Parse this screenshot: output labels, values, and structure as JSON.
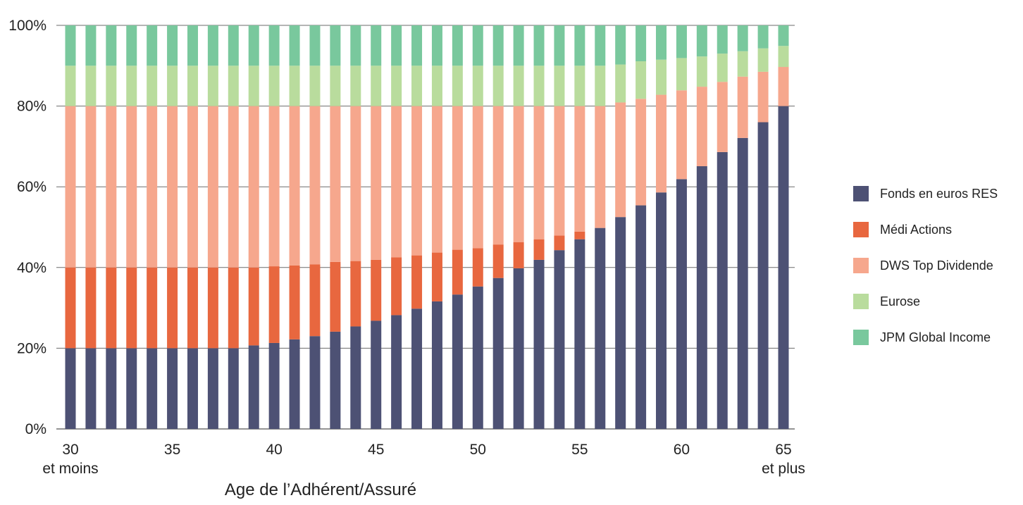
{
  "chart_data": {
    "type": "bar",
    "stacked": true,
    "title": "",
    "xlabel": "Age de l’Adhérent/Assuré",
    "ylabel": "",
    "ylim": [
      0,
      100
    ],
    "y_ticks": [
      "0%",
      "20%",
      "40%",
      "60%",
      "80%",
      "100%"
    ],
    "x_ticks": [
      {
        "age": 30,
        "label": "30",
        "sublabel": "et moins"
      },
      {
        "age": 35,
        "label": "35",
        "sublabel": ""
      },
      {
        "age": 40,
        "label": "40",
        "sublabel": ""
      },
      {
        "age": 45,
        "label": "45",
        "sublabel": ""
      },
      {
        "age": 50,
        "label": "50",
        "sublabel": ""
      },
      {
        "age": 55,
        "label": "55",
        "sublabel": ""
      },
      {
        "age": 60,
        "label": "60",
        "sublabel": ""
      },
      {
        "age": 65,
        "label": "65",
        "sublabel": "et plus"
      }
    ],
    "grid": true,
    "legend_position": "right",
    "categories": [
      30,
      31,
      32,
      33,
      34,
      35,
      36,
      37,
      38,
      39,
      40,
      41,
      42,
      43,
      44,
      45,
      46,
      47,
      48,
      49,
      50,
      51,
      52,
      53,
      54,
      55,
      56,
      57,
      58,
      59,
      60,
      61,
      62,
      63,
      64,
      65
    ],
    "series": [
      {
        "name": "Fonds en euros RES",
        "color": "#4d5174",
        "values": [
          20,
          20,
          20,
          20,
          20,
          20,
          20,
          20,
          20,
          20.7,
          21.3,
          22.2,
          23,
          24.1,
          25.4,
          26.8,
          28.2,
          29.8,
          31.6,
          33.3,
          35.3,
          37.4,
          39.8,
          41.9,
          44.3,
          47,
          49.8,
          52.5,
          55.4,
          58.6,
          61.9,
          65.1,
          68.6,
          72.1,
          76,
          80
        ]
      },
      {
        "name": "Médi Actions",
        "color": "#e8673f",
        "values": [
          20,
          20,
          20,
          20,
          20,
          20,
          20,
          20,
          20,
          19.3,
          19,
          18.3,
          17.8,
          17.3,
          16.2,
          15.1,
          14.3,
          13.2,
          12.1,
          11.1,
          9.5,
          8.3,
          6.5,
          5.1,
          3.6,
          1.9,
          0,
          0,
          0,
          0,
          0,
          0,
          0,
          0,
          0,
          0
        ]
      },
      {
        "name": "DWS Top Dividende",
        "color": "#f6a78d",
        "values": [
          40,
          40,
          40,
          40,
          40,
          40,
          40,
          40,
          40,
          40,
          39.7,
          39.5,
          39.2,
          38.6,
          38.4,
          38.1,
          37.5,
          37,
          36.3,
          35.6,
          35.2,
          34.3,
          33.7,
          33,
          32.1,
          31.1,
          30.2,
          28.4,
          26.4,
          24.2,
          22,
          19.7,
          17.4,
          15.2,
          12.5,
          9.7
        ]
      },
      {
        "name": "Eurose",
        "color": "#b9dc9d",
        "values": [
          10,
          10,
          10,
          10,
          10,
          10,
          10,
          10,
          10,
          10,
          10,
          10,
          10,
          10,
          10,
          10,
          10,
          10,
          10,
          10,
          10,
          10,
          10,
          10,
          10,
          10,
          10,
          9.4,
          9.3,
          8.7,
          8,
          7.5,
          7,
          6.3,
          5.8,
          5.2
        ]
      },
      {
        "name": "JPM Global Income",
        "color": "#79c89d",
        "values": [
          10,
          10,
          10,
          10,
          10,
          10,
          10,
          10,
          10,
          10,
          10,
          10,
          10,
          10,
          10,
          10,
          10,
          10,
          10,
          10,
          10,
          10,
          10,
          10,
          10,
          10,
          10,
          9.7,
          8.9,
          8.5,
          8.1,
          7.7,
          7,
          6.4,
          5.7,
          5.1
        ]
      }
    ]
  }
}
